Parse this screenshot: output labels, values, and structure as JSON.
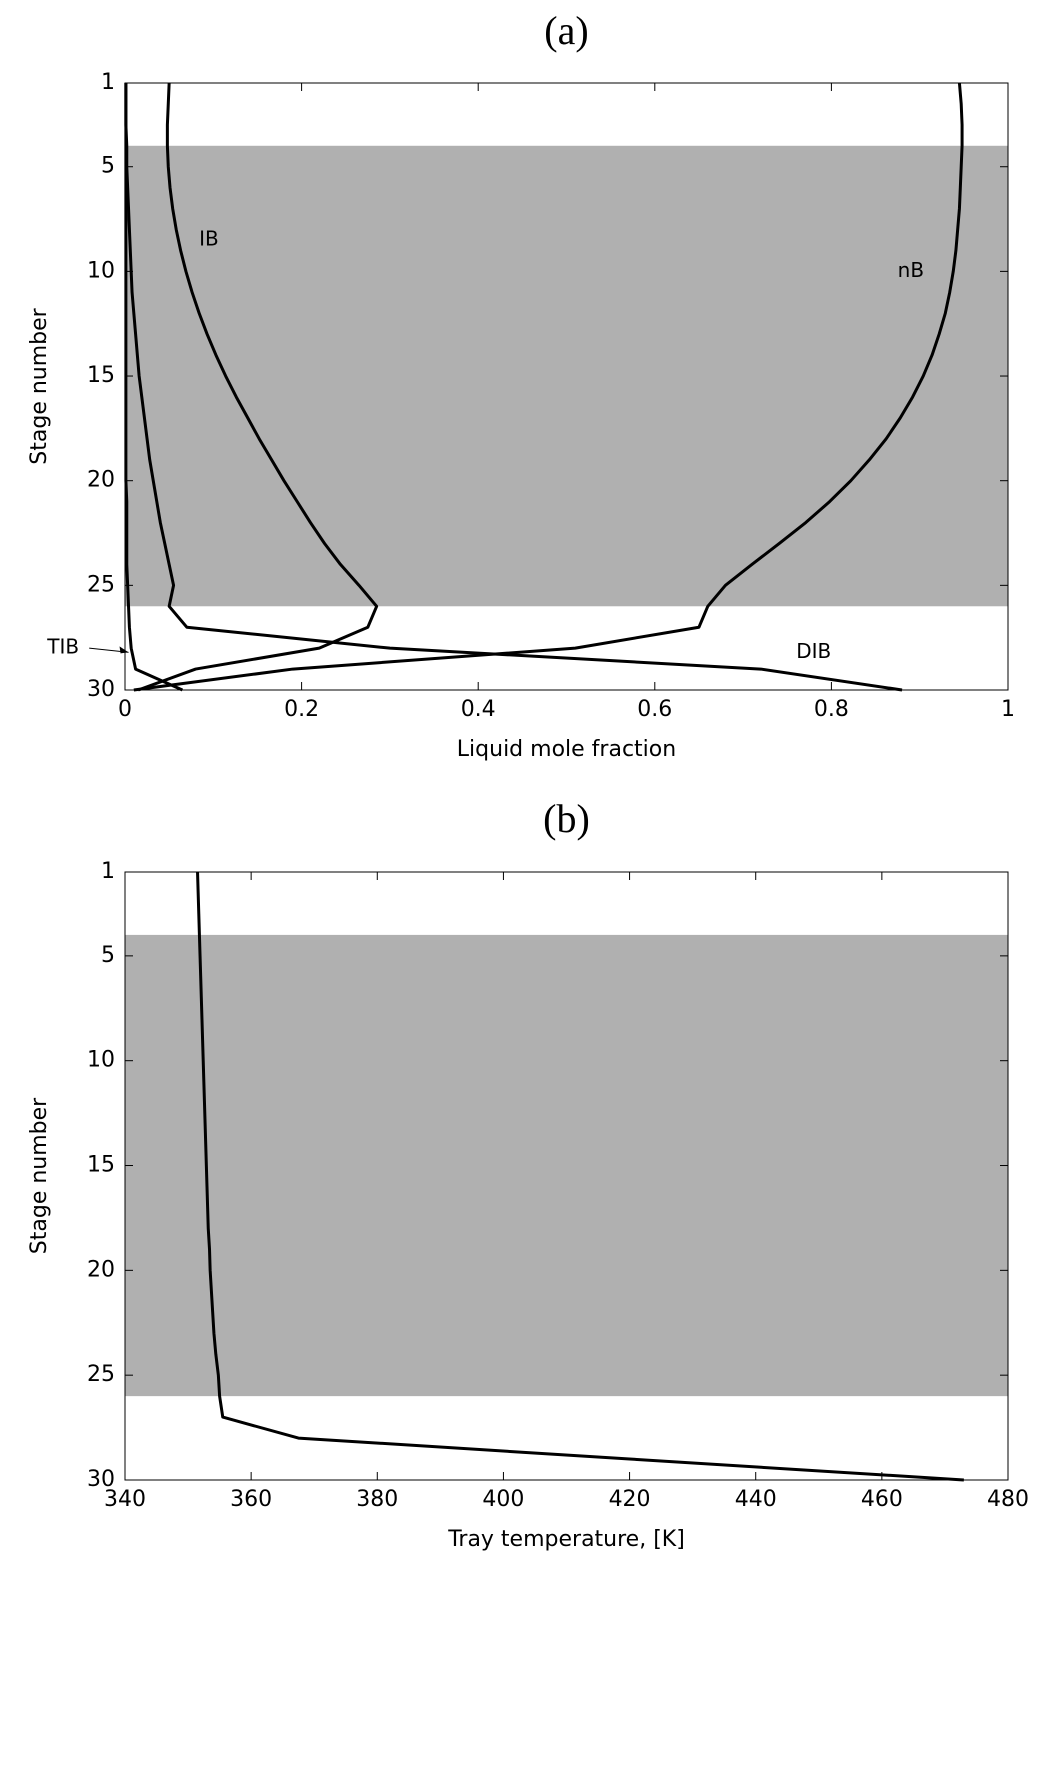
{
  "chart_data": [
    {
      "type": "line",
      "title": "(a)",
      "x_label": "Liquid mole fraction",
      "y_label": "Stage number",
      "xlim": [
        0,
        1
      ],
      "xticks": [
        0,
        0.2,
        0.4,
        0.6,
        0.8,
        1
      ],
      "ylim": [
        1,
        30
      ],
      "yticks": [
        1,
        5,
        10,
        15,
        20,
        25,
        30
      ],
      "y_inverted": true,
      "shaded_region": [
        4,
        26
      ],
      "shade_color": "#b0b0b0",
      "stages": [
        1,
        2,
        3,
        4,
        5,
        6,
        7,
        8,
        9,
        10,
        11,
        12,
        13,
        14,
        15,
        16,
        17,
        18,
        19,
        20,
        21,
        22,
        23,
        24,
        25,
        26,
        27,
        28,
        29,
        30
      ],
      "series": [
        {
          "name": "IB",
          "color": "#000000",
          "values": [
            0.05,
            0.049,
            0.048,
            0.048,
            0.049,
            0.051,
            0.054,
            0.058,
            0.063,
            0.069,
            0.076,
            0.084,
            0.093,
            0.103,
            0.114,
            0.126,
            0.139,
            0.152,
            0.166,
            0.18,
            0.195,
            0.21,
            0.226,
            0.244,
            0.265,
            0.285,
            0.275,
            0.22,
            0.08,
            0.015
          ]
        },
        {
          "name": "nB",
          "color": "#000000",
          "values": [
            0.945,
            0.947,
            0.948,
            0.948,
            0.947,
            0.946,
            0.945,
            0.943,
            0.941,
            0.938,
            0.934,
            0.929,
            0.922,
            0.914,
            0.904,
            0.892,
            0.878,
            0.862,
            0.843,
            0.822,
            0.798,
            0.771,
            0.741,
            0.71,
            0.68,
            0.66,
            0.65,
            0.51,
            0.19,
            0.01
          ]
        },
        {
          "name": "TIB",
          "color": "#000000",
          "values": [
            0.001,
            0.001,
            0.001,
            0.001,
            0.001,
            0.001,
            0.001,
            0.001,
            0.001,
            0.001,
            0.001,
            0.001,
            0.001,
            0.001,
            0.001,
            0.001,
            0.001,
            0.001,
            0.001,
            0.001,
            0.002,
            0.002,
            0.002,
            0.002,
            0.003,
            0.004,
            0.005,
            0.007,
            0.012,
            0.065
          ]
        },
        {
          "name": "DIB",
          "color": "#000000",
          "values": [
            0.001,
            0.001,
            0.001,
            0.002,
            0.002,
            0.003,
            0.004,
            0.005,
            0.006,
            0.007,
            0.008,
            0.01,
            0.012,
            0.014,
            0.016,
            0.019,
            0.022,
            0.025,
            0.028,
            0.032,
            0.036,
            0.04,
            0.045,
            0.05,
            0.055,
            0.05,
            0.07,
            0.3,
            0.72,
            0.88
          ]
        }
      ]
    },
    {
      "type": "line",
      "title": "(b)",
      "x_label": "Tray temperature, [K]",
      "y_label": "Stage number",
      "xlim": [
        340,
        480
      ],
      "xticks": [
        340,
        360,
        380,
        400,
        420,
        440,
        460,
        480
      ],
      "ylim": [
        1,
        30
      ],
      "yticks": [
        1,
        5,
        10,
        15,
        20,
        25,
        30
      ],
      "y_inverted": true,
      "shaded_region": [
        4,
        26
      ],
      "shade_color": "#b0b0b0",
      "stages": [
        1,
        2,
        3,
        4,
        5,
        6,
        7,
        8,
        9,
        10,
        11,
        12,
        13,
        14,
        15,
        16,
        17,
        18,
        19,
        20,
        21,
        22,
        23,
        24,
        25,
        26,
        27,
        28,
        29,
        30
      ],
      "series": [
        {
          "color": "#000000",
          "values": [
            351.5,
            351.6,
            351.7,
            351.8,
            351.9,
            352,
            352.1,
            352.2,
            352.3,
            352.4,
            352.5,
            352.6,
            352.7,
            352.8,
            352.9,
            353,
            353.1,
            353.2,
            353.4,
            353.5,
            353.7,
            353.9,
            354.1,
            354.4,
            354.8,
            355,
            355.5,
            367.5,
            420,
            473
          ]
        }
      ]
    }
  ]
}
